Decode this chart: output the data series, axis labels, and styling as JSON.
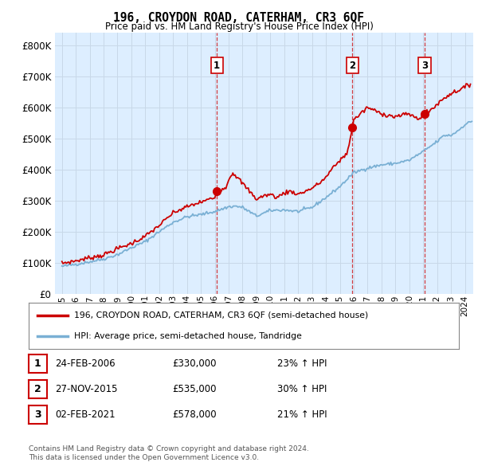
{
  "title": "196, CROYDON ROAD, CATERHAM, CR3 6QF",
  "subtitle": "Price paid vs. HM Land Registry's House Price Index (HPI)",
  "ylabel_ticks": [
    "£0",
    "£100K",
    "£200K",
    "£300K",
    "£400K",
    "£500K",
    "£600K",
    "£700K",
    "£800K"
  ],
  "ytick_values": [
    0,
    100000,
    200000,
    300000,
    400000,
    500000,
    600000,
    700000,
    800000
  ],
  "ylim": [
    0,
    840000
  ],
  "xlim_start": 1994.5,
  "xlim_end": 2024.6,
  "hpi_color": "#7ab0d4",
  "price_color": "#cc0000",
  "grid_color": "#c8d8e8",
  "plot_bg": "#ddeeff",
  "legend_label_red": "196, CROYDON ROAD, CATERHAM, CR3 6QF (semi-detached house)",
  "legend_label_blue": "HPI: Average price, semi-detached house, Tandridge",
  "sales": [
    {
      "num": 1,
      "date": "24-FEB-2006",
      "price": 330000,
      "pct": "23%",
      "direction": "↑",
      "year": 2006.15
    },
    {
      "num": 2,
      "date": "27-NOV-2015",
      "price": 535000,
      "pct": "30%",
      "direction": "↑",
      "year": 2015.9
    },
    {
      "num": 3,
      "date": "02-FEB-2021",
      "price": 578000,
      "pct": "21%",
      "direction": "↑",
      "year": 2021.1
    }
  ],
  "footnote1": "Contains HM Land Registry data © Crown copyright and database right 2024.",
  "footnote2": "This data is licensed under the Open Government Licence v3.0.",
  "xtick_years": [
    1995,
    1996,
    1997,
    1998,
    1999,
    2000,
    2001,
    2002,
    2003,
    2004,
    2005,
    2006,
    2007,
    2008,
    2009,
    2010,
    2011,
    2012,
    2013,
    2014,
    2015,
    2016,
    2017,
    2018,
    2019,
    2020,
    2021,
    2022,
    2023,
    2024
  ]
}
